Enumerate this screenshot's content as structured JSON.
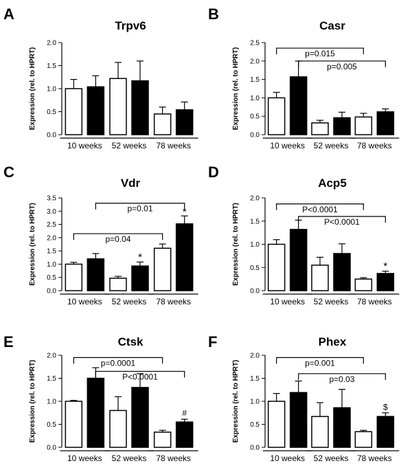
{
  "chart_data": [
    {
      "panel": "A",
      "type": "bar",
      "title": "Trpv6",
      "ylabel": "Expression (rel. to HPRT)",
      "ylim": [
        0,
        2.0
      ],
      "yticks": [
        "0.0",
        "0.5",
        "1.0",
        "1.5",
        "2.0"
      ],
      "groups": [
        "10 weeks",
        "52 weeks",
        "78 weeks"
      ],
      "series": [
        {
          "name": "open",
          "values": [
            1.0,
            1.22,
            0.45
          ],
          "errors": [
            0.2,
            0.35,
            0.15
          ]
        },
        {
          "name": "filled",
          "values": [
            1.04,
            1.17,
            0.54
          ],
          "errors": [
            0.24,
            0.43,
            0.17
          ]
        }
      ],
      "brackets": [],
      "marks": []
    },
    {
      "panel": "B",
      "type": "bar",
      "title": "Casr",
      "ylabel": "Expression (rel. to HPRT)",
      "ylim": [
        0,
        2.5
      ],
      "yticks": [
        "0.0",
        "0.5",
        "1.0",
        "1.5",
        "2.0",
        "2.5"
      ],
      "groups": [
        "10 weeks",
        "52 weeks",
        "78 weeks"
      ],
      "series": [
        {
          "name": "open",
          "values": [
            1.0,
            0.32,
            0.48
          ],
          "errors": [
            0.15,
            0.07,
            0.1
          ]
        },
        {
          "name": "filled",
          "values": [
            1.57,
            0.46,
            0.62
          ],
          "errors": [
            0.43,
            0.15,
            0.08
          ]
        }
      ],
      "brackets": [
        {
          "label": "p=0.015",
          "from": [
            0,
            0
          ],
          "to": [
            2,
            0
          ],
          "y": 2.35
        },
        {
          "label": "p=0.005",
          "from": [
            0,
            1
          ],
          "to": [
            2,
            1
          ],
          "y": 2.0
        }
      ],
      "marks": []
    },
    {
      "panel": "C",
      "type": "bar",
      "title": "Vdr",
      "ylabel": "Expression (rel. to HPRT)",
      "ylim": [
        0,
        3.5
      ],
      "yticks": [
        "0.0",
        "0.5",
        "1.0",
        "1.5",
        "2.0",
        "2.5",
        "3.0",
        "3.5"
      ],
      "groups": [
        "10 weeks",
        "52 weeks",
        "78 weeks"
      ],
      "series": [
        {
          "name": "open",
          "values": [
            1.0,
            0.47,
            1.6
          ],
          "errors": [
            0.07,
            0.07,
            0.16
          ]
        },
        {
          "name": "filled",
          "values": [
            1.2,
            0.93,
            2.52
          ],
          "errors": [
            0.2,
            0.15,
            0.3
          ]
        }
      ],
      "brackets": [
        {
          "label": "p=0.01",
          "from": [
            0,
            1
          ],
          "to": [
            2,
            1
          ],
          "y": 3.3
        },
        {
          "label": "p=0.04",
          "from": [
            0,
            0
          ],
          "to": [
            2,
            0
          ],
          "y": 2.15
        }
      ],
      "marks": [
        {
          "text": "*",
          "group": 1,
          "series": 1,
          "y": 1.25
        },
        {
          "text": "*",
          "group": 2,
          "series": 1,
          "y": 2.95
        }
      ]
    },
    {
      "panel": "D",
      "type": "bar",
      "title": "Acp5",
      "ylabel": "Expression (rel. to HPRT)",
      "ylim": [
        0,
        2.0
      ],
      "yticks": [
        "0.0",
        "0.5",
        "1.0",
        "1.5",
        "2.0"
      ],
      "groups": [
        "10 weeks",
        "52 weeks",
        "78 weeks"
      ],
      "series": [
        {
          "name": "open",
          "values": [
            1.0,
            0.55,
            0.25
          ],
          "errors": [
            0.1,
            0.17,
            0.03
          ]
        },
        {
          "name": "filled",
          "values": [
            1.32,
            0.8,
            0.37
          ],
          "errors": [
            0.2,
            0.21,
            0.05
          ]
        }
      ],
      "brackets": [
        {
          "label": "P<0.0001",
          "from": [
            0,
            0
          ],
          "to": [
            2,
            0
          ],
          "y": 1.87
        },
        {
          "label": "P<0.0001",
          "from": [
            0,
            1
          ],
          "to": [
            2,
            1
          ],
          "y": 1.6
        }
      ],
      "marks": [
        {
          "text": "*",
          "group": 2,
          "series": 1,
          "y": 0.52
        }
      ]
    },
    {
      "panel": "E",
      "type": "bar",
      "title": "Ctsk",
      "ylabel": "Expression (rel. to HPRT)",
      "ylim": [
        0,
        2.0
      ],
      "yticks": [
        "0.0",
        "0.5",
        "1.0",
        "1.5",
        "2.0"
      ],
      "groups": [
        "10 weeks",
        "52 weeks",
        "78 weeks"
      ],
      "series": [
        {
          "name": "open",
          "values": [
            1.0,
            0.8,
            0.33
          ],
          "errors": [
            0.02,
            0.3,
            0.04
          ]
        },
        {
          "name": "filled",
          "values": [
            1.5,
            1.3,
            0.55
          ],
          "errors": [
            0.23,
            0.3,
            0.06
          ]
        }
      ],
      "brackets": [
        {
          "label": "p=0.0001",
          "from": [
            0,
            0
          ],
          "to": [
            2,
            0
          ],
          "y": 1.95
        },
        {
          "label": "P<0.0001",
          "from": [
            0,
            1
          ],
          "to": [
            2,
            1
          ],
          "y": 1.65
        }
      ],
      "marks": [
        {
          "text": "#",
          "group": 2,
          "series": 1,
          "y": 0.75
        }
      ]
    },
    {
      "panel": "F",
      "type": "bar",
      "title": "Phex",
      "ylabel": "Expression (rel. to HPRT)",
      "ylim": [
        0,
        2.0
      ],
      "yticks": [
        "0.0",
        "0.5",
        "1.0",
        "1.5",
        "2.0"
      ],
      "groups": [
        "10 weeks",
        "52 weeks",
        "78 weeks"
      ],
      "series": [
        {
          "name": "open",
          "values": [
            1.0,
            0.67,
            0.34
          ],
          "errors": [
            0.17,
            0.3,
            0.03
          ]
        },
        {
          "name": "filled",
          "values": [
            1.19,
            0.86,
            0.67
          ],
          "errors": [
            0.25,
            0.4,
            0.08
          ]
        }
      ],
      "brackets": [
        {
          "label": "p=0.001",
          "from": [
            0,
            0
          ],
          "to": [
            2,
            0
          ],
          "y": 1.95
        },
        {
          "label": "p=0.03",
          "from": [
            0,
            1
          ],
          "to": [
            2,
            1
          ],
          "y": 1.6
        }
      ],
      "marks": [
        {
          "text": "$",
          "group": 2,
          "series": 1,
          "y": 0.87
        }
      ]
    }
  ]
}
